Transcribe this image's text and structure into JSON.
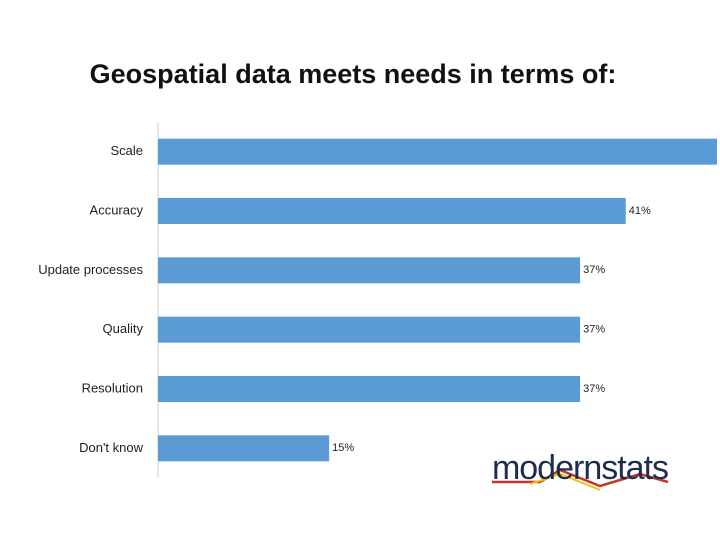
{
  "chart_data": {
    "type": "barh",
    "title": "Geospatial data meets needs in terms of:",
    "categories": [
      "Scale",
      "Accuracy",
      "Update processes",
      "Quality",
      "Resolution",
      "Don't know"
    ],
    "values": [
      49,
      41,
      37,
      37,
      37,
      15
    ],
    "value_labels": [
      null,
      "41%",
      "37%",
      "37%",
      "37%",
      "15%"
    ],
    "color": "#5b9bd5",
    "xlim": [
      0,
      49
    ],
    "logo": "modernstats"
  }
}
